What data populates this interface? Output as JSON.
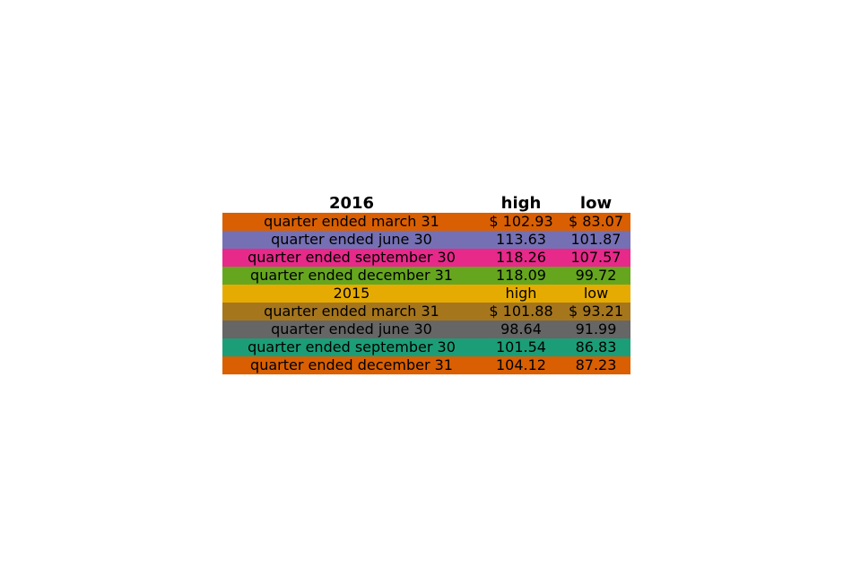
{
  "chart_data": {
    "type": "table",
    "columns": [
      "2016",
      "high",
      "low"
    ],
    "rows": [
      {
        "cells": [
          "quarter ended march 31",
          "$ 102.93",
          "$ 83.07"
        ],
        "color": "#d95f02"
      },
      {
        "cells": [
          "quarter ended june 30",
          "113.63",
          "101.87"
        ],
        "color": "#7570b3"
      },
      {
        "cells": [
          "quarter ended september 30",
          "118.26",
          "107.57"
        ],
        "color": "#e7298a"
      },
      {
        "cells": [
          "quarter ended december 31",
          "118.09",
          "99.72"
        ],
        "color": "#66a61e"
      },
      {
        "cells": [
          "2015",
          "high",
          "low"
        ],
        "color": "#e6ab02"
      },
      {
        "cells": [
          "quarter ended march 31",
          "$ 101.88",
          "$ 93.21"
        ],
        "color": "#a6761d"
      },
      {
        "cells": [
          "quarter ended june 30",
          "98.64",
          "91.99"
        ],
        "color": "#666666"
      },
      {
        "cells": [
          "quarter ended september 30",
          "101.54",
          "86.83"
        ],
        "color": "#1b9e77"
      },
      {
        "cells": [
          "quarter ended december 31",
          "104.12",
          "87.23"
        ],
        "color": "#d95f02"
      }
    ]
  }
}
